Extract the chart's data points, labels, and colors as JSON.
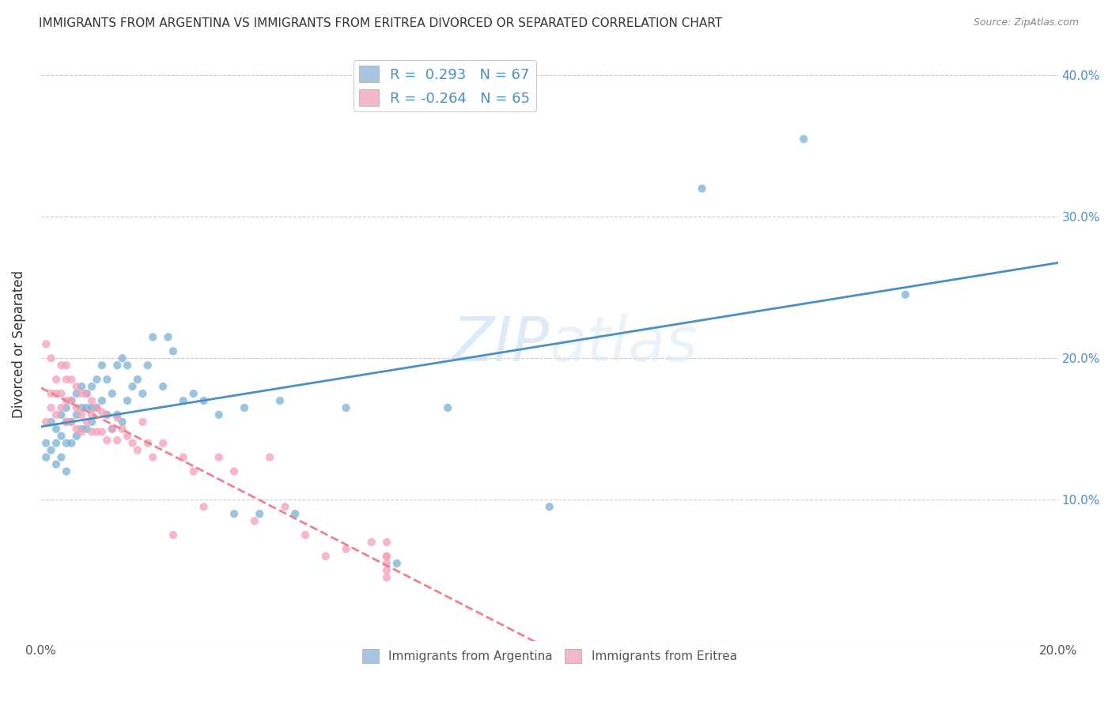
{
  "title": "IMMIGRANTS FROM ARGENTINA VS IMMIGRANTS FROM ERITREA DIVORCED OR SEPARATED CORRELATION CHART",
  "source": "Source: ZipAtlas.com",
  "ylabel": "Divorced or Separated",
  "xlim": [
    0.0,
    0.2
  ],
  "ylim": [
    0.0,
    0.42
  ],
  "xticks": [
    0.0,
    0.02,
    0.04,
    0.06,
    0.08,
    0.1,
    0.12,
    0.14,
    0.16,
    0.18,
    0.2
  ],
  "yticks": [
    0.0,
    0.1,
    0.2,
    0.3,
    0.4
  ],
  "background_color": "#ffffff",
  "legend_label_1": "R =  0.293   N = 67",
  "legend_label_2": "R = -0.264   N = 65",
  "legend_color_1": "#a8c4e0",
  "legend_color_2": "#f4b8c8",
  "scatter_color_1": "#7ab0d4",
  "scatter_color_2": "#f4a0b8",
  "line_color_1": "#4a90c4",
  "line_color_2": "#f08090",
  "argentina_x": [
    0.001,
    0.001,
    0.002,
    0.002,
    0.003,
    0.003,
    0.003,
    0.004,
    0.004,
    0.004,
    0.005,
    0.005,
    0.005,
    0.005,
    0.006,
    0.006,
    0.006,
    0.007,
    0.007,
    0.007,
    0.008,
    0.008,
    0.008,
    0.009,
    0.009,
    0.009,
    0.01,
    0.01,
    0.01,
    0.011,
    0.011,
    0.012,
    0.012,
    0.013,
    0.013,
    0.014,
    0.014,
    0.015,
    0.015,
    0.016,
    0.016,
    0.017,
    0.017,
    0.018,
    0.019,
    0.02,
    0.021,
    0.022,
    0.024,
    0.025,
    0.026,
    0.028,
    0.03,
    0.032,
    0.035,
    0.038,
    0.04,
    0.043,
    0.047,
    0.05,
    0.06,
    0.07,
    0.08,
    0.1,
    0.13,
    0.15,
    0.17
  ],
  "argentina_y": [
    0.14,
    0.13,
    0.155,
    0.135,
    0.15,
    0.14,
    0.125,
    0.16,
    0.145,
    0.13,
    0.165,
    0.155,
    0.14,
    0.12,
    0.17,
    0.155,
    0.14,
    0.175,
    0.16,
    0.145,
    0.18,
    0.165,
    0.15,
    0.175,
    0.165,
    0.15,
    0.18,
    0.165,
    0.155,
    0.185,
    0.165,
    0.195,
    0.17,
    0.185,
    0.16,
    0.175,
    0.15,
    0.195,
    0.16,
    0.2,
    0.155,
    0.195,
    0.17,
    0.18,
    0.185,
    0.175,
    0.195,
    0.215,
    0.18,
    0.215,
    0.205,
    0.17,
    0.175,
    0.17,
    0.16,
    0.09,
    0.165,
    0.09,
    0.17,
    0.09,
    0.165,
    0.055,
    0.165,
    0.095,
    0.32,
    0.355,
    0.245
  ],
  "eritrea_x": [
    0.001,
    0.001,
    0.002,
    0.002,
    0.002,
    0.003,
    0.003,
    0.003,
    0.004,
    0.004,
    0.004,
    0.005,
    0.005,
    0.005,
    0.005,
    0.006,
    0.006,
    0.006,
    0.007,
    0.007,
    0.007,
    0.008,
    0.008,
    0.008,
    0.009,
    0.009,
    0.01,
    0.01,
    0.01,
    0.011,
    0.011,
    0.012,
    0.012,
    0.013,
    0.013,
    0.014,
    0.015,
    0.015,
    0.016,
    0.017,
    0.018,
    0.019,
    0.02,
    0.021,
    0.022,
    0.024,
    0.026,
    0.028,
    0.03,
    0.032,
    0.035,
    0.038,
    0.042,
    0.045,
    0.048,
    0.052,
    0.056,
    0.06,
    0.065,
    0.068,
    0.068,
    0.068,
    0.068,
    0.068,
    0.068
  ],
  "eritrea_y": [
    0.155,
    0.21,
    0.2,
    0.175,
    0.165,
    0.185,
    0.175,
    0.16,
    0.195,
    0.175,
    0.165,
    0.195,
    0.185,
    0.17,
    0.155,
    0.185,
    0.17,
    0.155,
    0.18,
    0.165,
    0.15,
    0.175,
    0.16,
    0.148,
    0.175,
    0.155,
    0.17,
    0.16,
    0.148,
    0.165,
    0.148,
    0.162,
    0.148,
    0.16,
    0.142,
    0.15,
    0.158,
    0.142,
    0.15,
    0.145,
    0.14,
    0.135,
    0.155,
    0.14,
    0.13,
    0.14,
    0.075,
    0.13,
    0.12,
    0.095,
    0.13,
    0.12,
    0.085,
    0.13,
    0.095,
    0.075,
    0.06,
    0.065,
    0.07,
    0.06,
    0.07,
    0.055,
    0.06,
    0.05,
    0.045
  ]
}
